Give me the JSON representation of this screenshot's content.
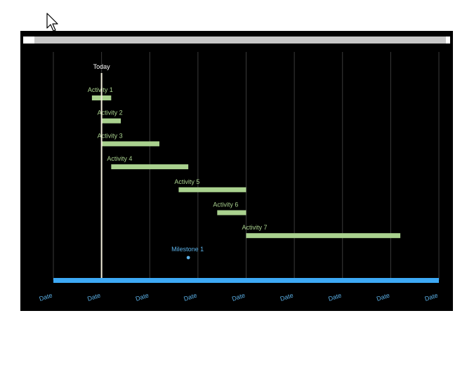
{
  "colors": {
    "background": "#000000",
    "activity_bar": "#a9d18e",
    "timeline": "#3da9f5",
    "milestone": "#5bb0e6",
    "today_line": "#f2eedc",
    "grid": "#3a3a3a",
    "header_bar": "#c8c8c8"
  },
  "chart_data": {
    "type": "gantt",
    "x_ticks": [
      "Date",
      "Date",
      "Date",
      "Date",
      "Date",
      "Date",
      "Date",
      "Date",
      "Date"
    ],
    "today": {
      "label": "Today",
      "x": 1.0
    },
    "activities": [
      {
        "label": "Activity 1",
        "start": 0.8,
        "end": 1.2
      },
      {
        "label": "Activity 2",
        "start": 1.0,
        "end": 1.4
      },
      {
        "label": "Activity 3",
        "start": 1.0,
        "end": 2.2
      },
      {
        "label": "Activity 4",
        "start": 1.2,
        "end": 2.8
      },
      {
        "label": "Activity 5",
        "start": 2.6,
        "end": 4.0
      },
      {
        "label": "Activity 6",
        "start": 3.4,
        "end": 4.0
      },
      {
        "label": "Activity 7",
        "start": 4.0,
        "end": 7.2
      }
    ],
    "milestones": [
      {
        "label": "Milestone 1",
        "x": 2.8
      }
    ],
    "x_range": [
      0,
      8
    ],
    "grid": true
  }
}
